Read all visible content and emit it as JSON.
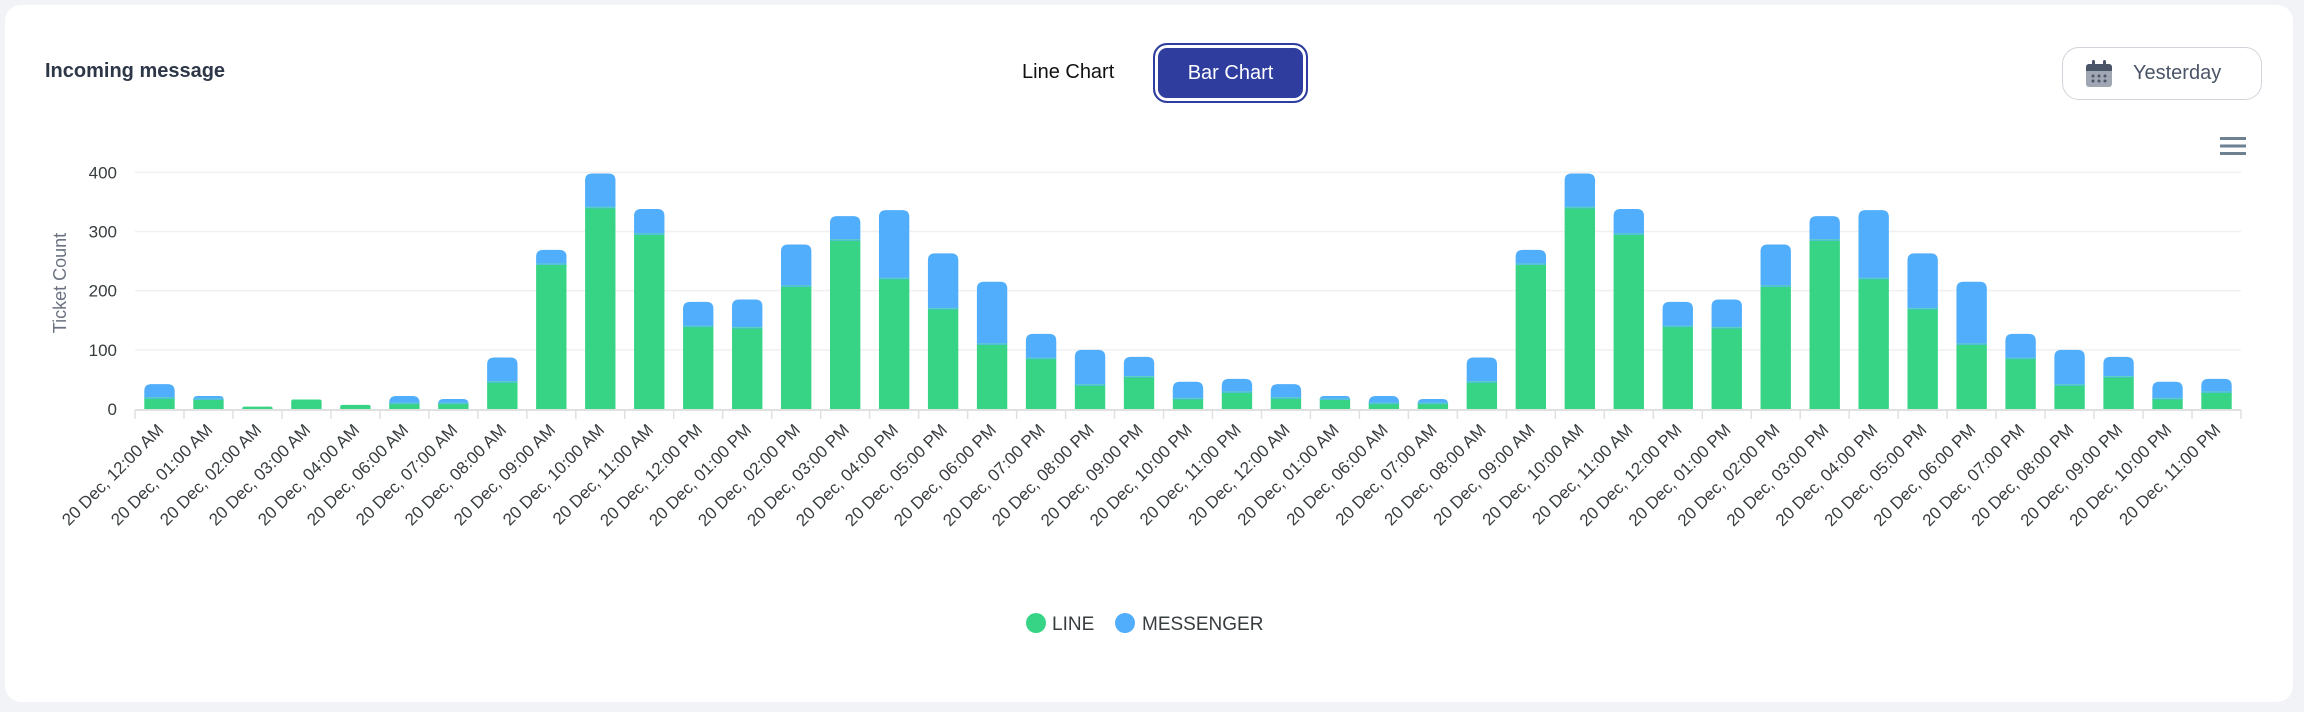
{
  "header": {
    "title": "Incoming message",
    "tabs": [
      {
        "label": "Line Chart",
        "active": false
      },
      {
        "label": "Bar Chart",
        "active": true
      }
    ],
    "date_filter": {
      "label": "Yesterday",
      "icon": "calendar-icon"
    },
    "menu_icon": "hamburger-menu-icon"
  },
  "colors": {
    "line": "#37d485",
    "messenger": "#50aefc",
    "accent": "#2e3d9e"
  },
  "chart_data": {
    "type": "bar",
    "stacked": true,
    "title": "",
    "xlabel": "",
    "ylabel": "Ticket Count",
    "ylim": [
      0,
      400
    ],
    "yticks": [
      0,
      100,
      200,
      300,
      400
    ],
    "grid": true,
    "legend_position": "bottom",
    "categories": [
      "20 Dec, 12:00 AM",
      "20 Dec, 01:00 AM",
      "20 Dec, 02:00 AM",
      "20 Dec, 03:00 AM",
      "20 Dec, 04:00 AM",
      "20 Dec, 06:00 AM",
      "20 Dec, 07:00 AM",
      "20 Dec, 08:00 AM",
      "20 Dec, 09:00 AM",
      "20 Dec, 10:00 AM",
      "20 Dec, 11:00 AM",
      "20 Dec, 12:00 PM",
      "20 Dec, 01:00 PM",
      "20 Dec, 02:00 PM",
      "20 Dec, 03:00 PM",
      "20 Dec, 04:00 PM",
      "20 Dec, 05:00 PM",
      "20 Dec, 06:00 PM",
      "20 Dec, 07:00 PM",
      "20 Dec, 08:00 PM",
      "20 Dec, 09:00 PM",
      "20 Dec, 10:00 PM",
      "20 Dec, 11:00 PM",
      "20 Dec, 12:00 AM",
      "20 Dec, 01:00 AM",
      "20 Dec, 06:00 AM",
      "20 Dec, 07:00 AM",
      "20 Dec, 08:00 AM",
      "20 Dec, 09:00 AM",
      "20 Dec, 10:00 AM",
      "20 Dec, 11:00 AM",
      "20 Dec, 12:00 PM",
      "20 Dec, 01:00 PM",
      "20 Dec, 02:00 PM",
      "20 Dec, 03:00 PM",
      "20 Dec, 04:00 PM",
      "20 Dec, 05:00 PM",
      "20 Dec, 06:00 PM",
      "20 Dec, 07:00 PM",
      "20 Dec, 08:00 PM",
      "20 Dec, 09:00 PM",
      "20 Dec, 10:00 PM",
      "20 Dec, 11:00 PM"
    ],
    "series": [
      {
        "name": "LINE",
        "color": "#37d485",
        "values": [
          19,
          17,
          4,
          16,
          7,
          10,
          10,
          46,
          245,
          341,
          296,
          140,
          138,
          208,
          286,
          221,
          170,
          110,
          86,
          41,
          55,
          18,
          29,
          19,
          17,
          10,
          10,
          46,
          245,
          341,
          296,
          140,
          138,
          208,
          286,
          221,
          170,
          110,
          86,
          41,
          55,
          18,
          29
        ]
      },
      {
        "name": "MESSENGER",
        "color": "#50aefc",
        "values": [
          23,
          5,
          0,
          0,
          0,
          12,
          7,
          41,
          24,
          57,
          42,
          41,
          47,
          70,
          40,
          115,
          93,
          105,
          41,
          59,
          33,
          28,
          22,
          23,
          5,
          12,
          7,
          41,
          24,
          57,
          42,
          41,
          47,
          70,
          40,
          115,
          93,
          105,
          41,
          59,
          33,
          28,
          22
        ]
      }
    ]
  }
}
